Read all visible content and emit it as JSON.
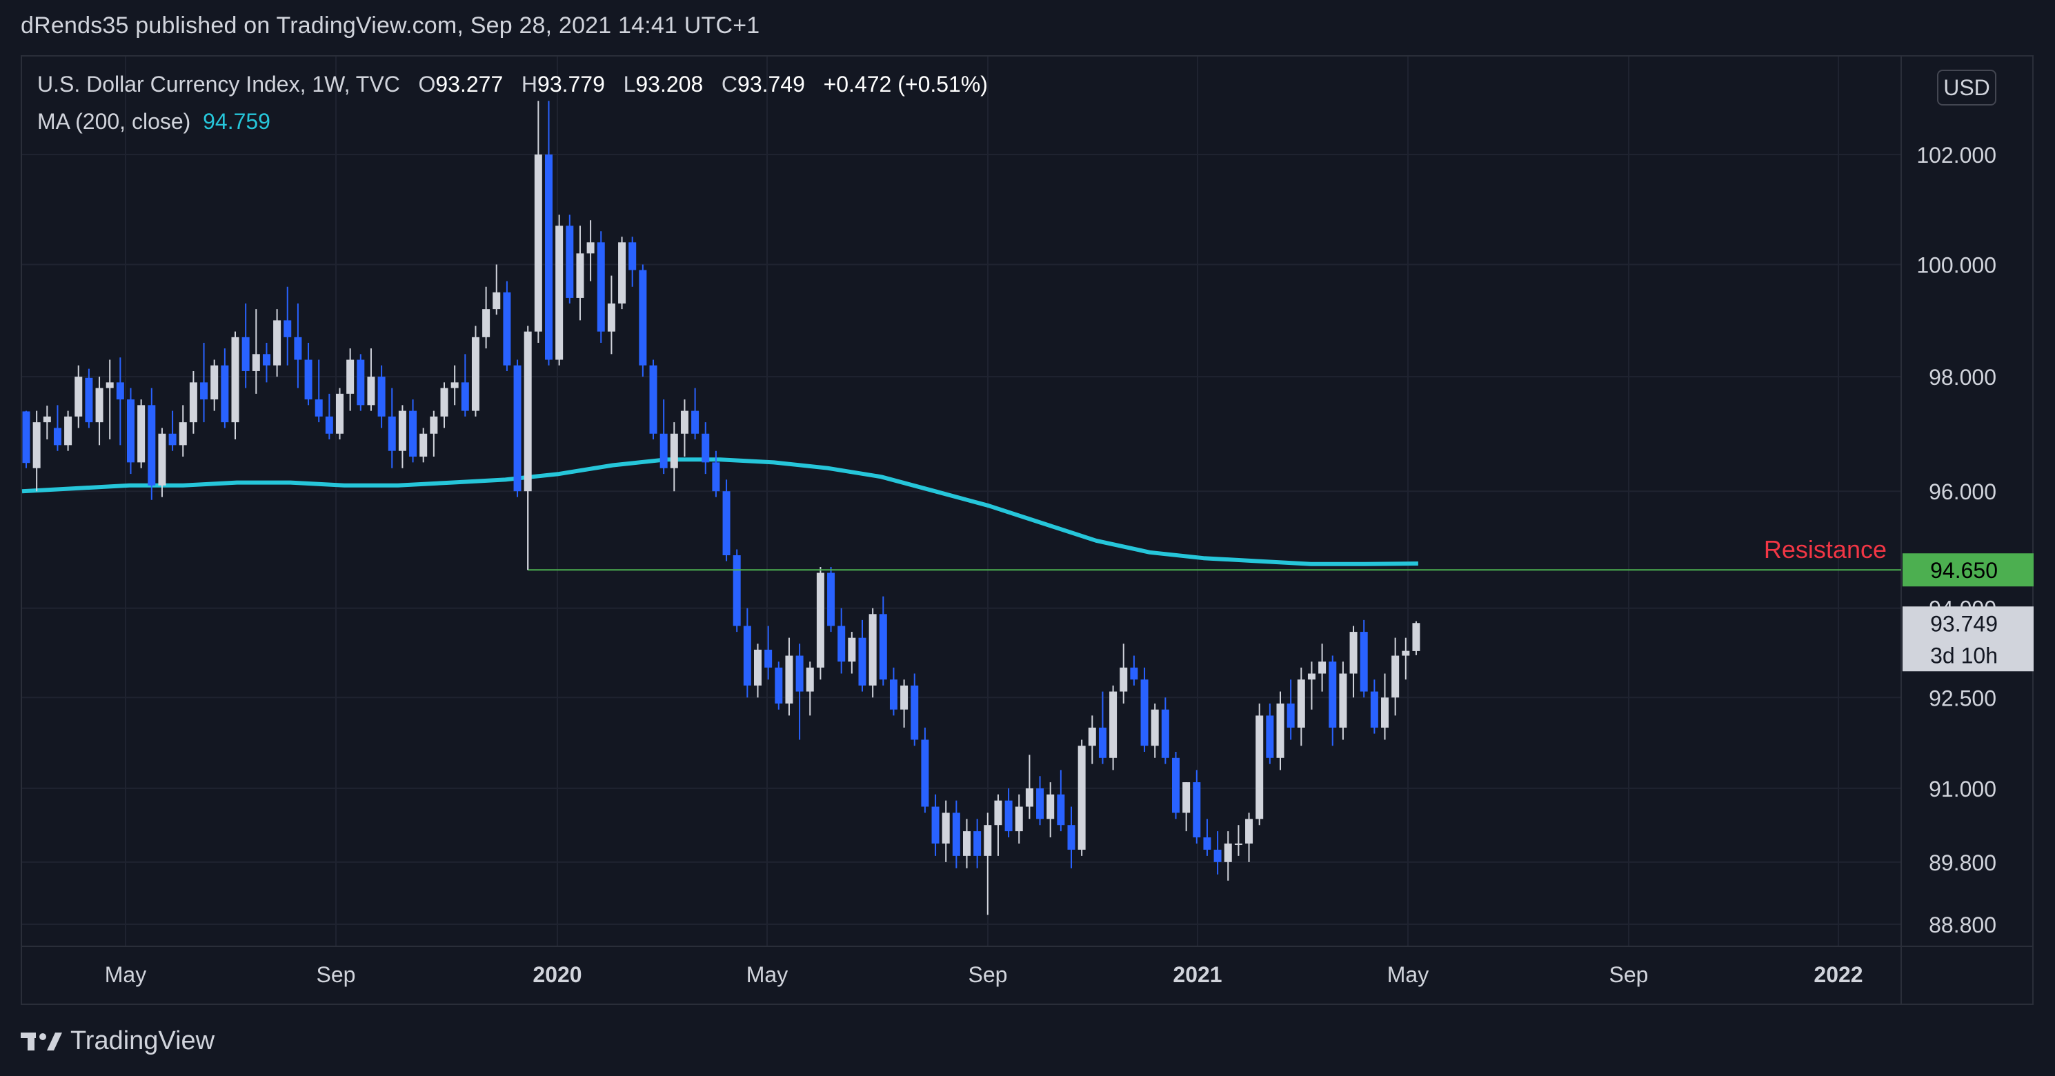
{
  "header": {
    "text": "dRends35 published on TradingView.com, Sep 28, 2021 14:41 UTC+1"
  },
  "legend": {
    "symbol": "U.S. Dollar Currency Index, 1W, TVC",
    "open_label": "O",
    "open": "93.277",
    "high_label": "H",
    "high": "93.779",
    "low_label": "L",
    "low": "93.208",
    "close_label": "C",
    "close": "93.749",
    "change": "+0.472 (+0.51%)",
    "ma_label": "MA (200, close)",
    "ma_value": "94.759"
  },
  "currency_button": "USD",
  "footer": {
    "brand": "TradingView"
  },
  "colors": {
    "background": "#131722",
    "up": "#d1d4dc",
    "down": "#2962ff",
    "ma": "#26c6da",
    "resistance_line": "#4caf50",
    "resistance_text": "#f23645"
  },
  "chart_data": {
    "type": "candlestick",
    "interval": "1W",
    "y_ticks": [
      "102.000",
      "100.000",
      "98.000",
      "96.000",
      "94.000",
      "92.500",
      "91.000",
      "89.800",
      "88.800"
    ],
    "y_scale": "log",
    "x_ticks": [
      "May",
      "Sep",
      "2020",
      "May",
      "Sep",
      "2021",
      "May",
      "Sep",
      "2022"
    ],
    "resistance": {
      "label": "Resistance",
      "value": 94.65,
      "value_label": "94.650"
    },
    "last_price": {
      "value": 93.749,
      "label": "93.749",
      "countdown": "3d 10h"
    },
    "ma_series": [
      96.0,
      96.05,
      96.1,
      96.1,
      96.15,
      96.15,
      96.1,
      96.1,
      96.15,
      96.2,
      96.3,
      96.45,
      96.55,
      96.55,
      96.5,
      96.4,
      96.25,
      96.0,
      95.75,
      95.45,
      95.15,
      94.95,
      94.85,
      94.8,
      94.75,
      94.75,
      94.759
    ],
    "candles": [
      [
        97.39,
        97.4,
        96.4,
        96.49
      ],
      [
        96.4,
        97.4,
        96.0,
        97.2
      ],
      [
        97.2,
        97.49,
        96.9,
        97.3
      ],
      [
        97.1,
        97.5,
        96.7,
        96.8
      ],
      [
        96.8,
        97.4,
        96.7,
        97.3
      ],
      [
        97.3,
        98.2,
        97.1,
        98.0
      ],
      [
        97.98,
        98.14,
        97.1,
        97.2
      ],
      [
        97.2,
        98.0,
        96.8,
        97.8
      ],
      [
        97.8,
        98.3,
        96.9,
        97.9
      ],
      [
        97.9,
        98.34,
        96.8,
        97.6
      ],
      [
        97.6,
        97.8,
        96.3,
        96.5
      ],
      [
        96.5,
        97.6,
        96.4,
        97.5
      ],
      [
        97.5,
        97.8,
        95.85,
        96.1
      ],
      [
        96.1,
        97.1,
        95.9,
        97.0
      ],
      [
        97.0,
        97.4,
        96.7,
        96.8
      ],
      [
        96.8,
        97.5,
        96.6,
        97.2
      ],
      [
        97.2,
        98.1,
        97.0,
        97.9
      ],
      [
        97.9,
        98.6,
        97.2,
        97.6
      ],
      [
        97.6,
        98.3,
        97.4,
        98.2
      ],
      [
        98.2,
        98.5,
        97.1,
        97.2
      ],
      [
        97.2,
        98.8,
        96.9,
        98.7
      ],
      [
        98.7,
        99.3,
        97.8,
        98.1
      ],
      [
        98.1,
        99.2,
        97.7,
        98.4
      ],
      [
        98.4,
        98.6,
        97.9,
        98.2
      ],
      [
        98.2,
        99.2,
        98.0,
        99.0
      ],
      [
        99.0,
        99.6,
        98.2,
        98.7
      ],
      [
        98.7,
        99.3,
        97.8,
        98.3
      ],
      [
        98.3,
        98.6,
        97.5,
        97.6
      ],
      [
        97.6,
        98.3,
        97.2,
        97.3
      ],
      [
        97.3,
        97.7,
        96.9,
        97.0
      ],
      [
        97.0,
        97.8,
        96.9,
        97.7
      ],
      [
        97.7,
        98.5,
        97.4,
        98.3
      ],
      [
        98.3,
        98.4,
        97.4,
        97.5
      ],
      [
        97.5,
        98.5,
        97.4,
        98.0
      ],
      [
        98.0,
        98.2,
        97.1,
        97.3
      ],
      [
        97.3,
        97.8,
        96.4,
        96.7
      ],
      [
        96.7,
        97.5,
        96.4,
        97.4
      ],
      [
        97.4,
        97.6,
        96.5,
        96.6
      ],
      [
        96.6,
        97.1,
        96.5,
        97.0
      ],
      [
        97.0,
        97.4,
        96.6,
        97.3
      ],
      [
        97.3,
        97.9,
        97.1,
        97.8
      ],
      [
        97.8,
        98.2,
        97.5,
        97.9
      ],
      [
        97.9,
        98.4,
        97.3,
        97.4
      ],
      [
        97.4,
        98.9,
        97.3,
        98.7
      ],
      [
        98.7,
        99.6,
        98.5,
        99.2
      ],
      [
        99.2,
        100.0,
        99.1,
        99.5
      ],
      [
        99.5,
        99.7,
        98.1,
        98.2
      ],
      [
        98.2,
        98.3,
        95.9,
        96.0
      ],
      [
        96.0,
        98.9,
        94.65,
        98.8
      ],
      [
        98.8,
        102.99,
        98.6,
        102.0
      ],
      [
        102.0,
        102.99,
        98.2,
        98.3
      ],
      [
        98.3,
        100.9,
        98.2,
        100.7
      ],
      [
        100.7,
        100.9,
        99.3,
        99.4
      ],
      [
        99.4,
        100.7,
        99.0,
        100.2
      ],
      [
        100.2,
        100.8,
        99.7,
        100.4
      ],
      [
        100.4,
        100.6,
        98.6,
        98.8
      ],
      [
        98.8,
        99.8,
        98.4,
        99.3
      ],
      [
        99.3,
        100.5,
        99.2,
        100.4
      ],
      [
        100.4,
        100.5,
        99.6,
        99.9
      ],
      [
        99.9,
        100.0,
        98.0,
        98.2
      ],
      [
        98.2,
        98.3,
        96.9,
        97.0
      ],
      [
        97.0,
        97.6,
        96.3,
        96.4
      ],
      [
        96.4,
        97.2,
        96.0,
        97.0
      ],
      [
        97.0,
        97.6,
        96.6,
        97.4
      ],
      [
        97.4,
        97.8,
        96.9,
        97.0
      ],
      [
        97.0,
        97.2,
        96.3,
        96.5
      ],
      [
        96.5,
        96.7,
        95.9,
        96.0
      ],
      [
        96.0,
        96.2,
        94.8,
        94.9
      ],
      [
        94.9,
        95.0,
        93.6,
        93.7
      ],
      [
        93.7,
        94.0,
        92.5,
        92.7
      ],
      [
        92.7,
        93.4,
        92.5,
        93.3
      ],
      [
        93.3,
        93.7,
        92.8,
        93.0
      ],
      [
        93.0,
        93.1,
        92.3,
        92.4
      ],
      [
        92.4,
        93.5,
        92.2,
        93.2
      ],
      [
        93.2,
        93.4,
        91.8,
        92.6
      ],
      [
        92.6,
        93.1,
        92.2,
        93.0
      ],
      [
        93.0,
        94.7,
        92.8,
        94.6
      ],
      [
        94.6,
        94.7,
        93.6,
        93.7
      ],
      [
        93.7,
        94.0,
        92.9,
        93.1
      ],
      [
        93.1,
        93.6,
        92.9,
        93.5
      ],
      [
        93.5,
        93.8,
        92.6,
        92.7
      ],
      [
        92.7,
        94.0,
        92.5,
        93.9
      ],
      [
        93.9,
        94.2,
        92.7,
        92.8
      ],
      [
        92.8,
        93.0,
        92.2,
        92.3
      ],
      [
        92.3,
        92.8,
        92.0,
        92.7
      ],
      [
        92.7,
        92.9,
        91.7,
        91.8
      ],
      [
        91.8,
        92.0,
        90.6,
        90.7
      ],
      [
        90.7,
        90.9,
        89.9,
        90.1
      ],
      [
        90.1,
        90.8,
        89.8,
        90.6
      ],
      [
        90.6,
        90.8,
        89.7,
        89.9
      ],
      [
        89.9,
        90.5,
        89.7,
        90.3
      ],
      [
        90.3,
        90.5,
        89.7,
        89.9
      ],
      [
        89.9,
        90.6,
        88.95,
        90.4
      ],
      [
        90.4,
        90.9,
        89.9,
        90.8
      ],
      [
        90.8,
        91.0,
        90.2,
        90.3
      ],
      [
        90.3,
        90.9,
        90.1,
        90.7
      ],
      [
        90.7,
        91.55,
        90.5,
        91.0
      ],
      [
        91.0,
        91.2,
        90.4,
        90.5
      ],
      [
        90.5,
        91.1,
        90.2,
        90.9
      ],
      [
        90.9,
        91.3,
        90.3,
        90.4
      ],
      [
        90.4,
        90.7,
        89.7,
        90.0
      ],
      [
        90.0,
        91.8,
        89.9,
        91.7
      ],
      [
        91.7,
        92.2,
        91.4,
        92.0
      ],
      [
        92.0,
        92.6,
        91.4,
        91.5
      ],
      [
        91.5,
        92.7,
        91.3,
        92.6
      ],
      [
        92.6,
        93.4,
        92.4,
        93.0
      ],
      [
        93.0,
        93.2,
        92.7,
        92.8
      ],
      [
        92.8,
        93.0,
        91.6,
        91.7
      ],
      [
        91.7,
        92.4,
        91.5,
        92.3
      ],
      [
        92.3,
        92.5,
        91.4,
        91.5
      ],
      [
        91.5,
        91.6,
        90.5,
        90.6
      ],
      [
        90.6,
        91.1,
        90.3,
        91.1
      ],
      [
        91.1,
        91.3,
        90.1,
        90.2
      ],
      [
        90.2,
        90.5,
        89.9,
        90.0
      ],
      [
        90.0,
        90.3,
        89.6,
        89.8
      ],
      [
        89.8,
        90.3,
        89.5,
        90.1
      ],
      [
        90.1,
        90.4,
        89.9,
        90.1
      ],
      [
        90.1,
        90.6,
        89.8,
        90.5
      ],
      [
        90.5,
        92.4,
        90.4,
        92.2
      ],
      [
        92.2,
        92.4,
        91.4,
        91.5
      ],
      [
        91.5,
        92.6,
        91.3,
        92.4
      ],
      [
        92.4,
        92.8,
        91.8,
        92.0
      ],
      [
        92.0,
        93.0,
        91.7,
        92.8
      ],
      [
        92.8,
        93.1,
        92.3,
        92.9
      ],
      [
        92.9,
        93.4,
        92.6,
        93.1
      ],
      [
        93.1,
        93.2,
        91.7,
        92.0
      ],
      [
        92.0,
        93.1,
        91.8,
        92.9
      ],
      [
        92.9,
        93.7,
        92.5,
        93.6
      ],
      [
        93.6,
        93.8,
        92.5,
        92.6
      ],
      [
        92.6,
        92.8,
        91.9,
        92.0
      ],
      [
        92.0,
        92.9,
        91.8,
        92.5
      ],
      [
        92.5,
        93.5,
        92.2,
        93.2
      ],
      [
        93.2,
        93.5,
        92.8,
        93.28
      ],
      [
        93.277,
        93.779,
        93.208,
        93.749
      ]
    ]
  }
}
